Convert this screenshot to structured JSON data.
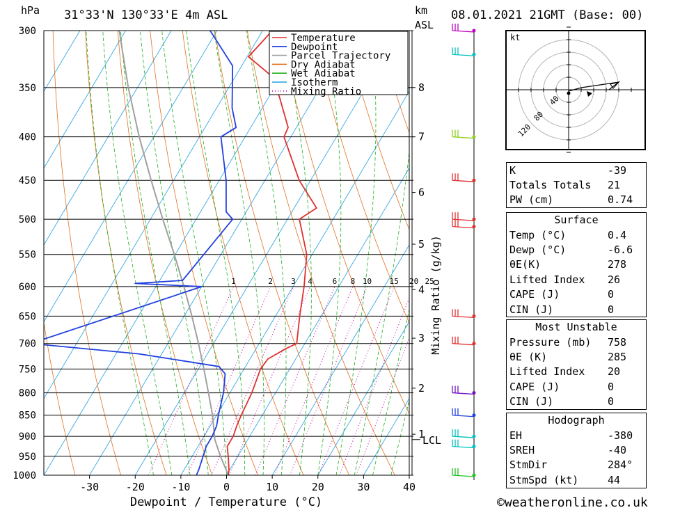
{
  "header": {
    "pressure_unit": "hPa",
    "location": "31°33'N  130°33'E  4m  ASL",
    "km_label": "km",
    "asl_label": "ASL",
    "datetime": "08.01.2021  21GMT  (Base: 00)"
  },
  "chart_data": {
    "type": "line",
    "title": "31°33'N  130°33'E  4m  ASL",
    "xlabel": "Dewpoint / Temperature (°C)",
    "ylabel": "hPa",
    "y2label": "Mixing Ratio (g/kg)",
    "xlim": [
      -40,
      40
    ],
    "ylim": [
      1000,
      300
    ],
    "x_ticks": [
      -30,
      -20,
      -10,
      0,
      10,
      20,
      30,
      40
    ],
    "pressure_ticks": [
      300,
      350,
      400,
      450,
      500,
      550,
      600,
      650,
      700,
      750,
      800,
      850,
      900,
      950,
      1000
    ],
    "km_ticks": [
      {
        "label": "8",
        "p": 350
      },
      {
        "label": "7",
        "p": 400
      },
      {
        "label": "6",
        "p": 465
      },
      {
        "label": "5",
        "p": 535
      },
      {
        "label": "4",
        "p": 605
      },
      {
        "label": "3",
        "p": 690
      },
      {
        "label": "2",
        "p": 790
      },
      {
        "label": "1",
        "p": 895
      }
    ],
    "lcl_label": "LCL",
    "lcl_pressure": 908,
    "mixing_ratio_labels": [
      "1",
      "2",
      "3",
      "4",
      "6",
      "8",
      "10",
      "15",
      "20",
      "25"
    ],
    "legend": [
      {
        "name": "Temperature",
        "color": "#e03030",
        "style": "solid"
      },
      {
        "name": "Dewpoint",
        "color": "#2040e0",
        "style": "solid"
      },
      {
        "name": "Parcel Trajectory",
        "color": "#a0a0a0",
        "style": "solid"
      },
      {
        "name": "Dry Adiabat",
        "color": "#e07020",
        "style": "solid"
      },
      {
        "name": "Wet Adiabat",
        "color": "#20b020",
        "style": "solid"
      },
      {
        "name": "Isotherm",
        "color": "#20a0e0",
        "style": "solid"
      },
      {
        "name": "Mixing Ratio",
        "color": "#c000a0",
        "style": "dotted"
      }
    ],
    "series": [
      {
        "name": "Temperature",
        "color": "#e03030",
        "p": [
          1000,
          985,
          950,
          925,
          900,
          875,
          850,
          800,
          750,
          730,
          710,
          700,
          650,
          600,
          550,
          500,
          485,
          450,
          400,
          390,
          360,
          340,
          322,
          300
        ],
        "t": [
          0.4,
          -0.2,
          -2.1,
          -3.6,
          -3.6,
          -4.2,
          -4.6,
          -5.2,
          -6.4,
          -6.1,
          -3.5,
          -1.8,
          -4.7,
          -7.6,
          -11.2,
          -17.4,
          -15.1,
          -22.5,
          -31.5,
          -31.8,
          -37.5,
          -41.8,
          -49.7,
          -47.9
        ]
      },
      {
        "name": "Dewpoint",
        "color": "#2040e0",
        "p": [
          1000,
          985,
          950,
          925,
          900,
          875,
          850,
          800,
          760,
          745,
          720,
          700,
          600,
          595,
          590,
          500,
          490,
          450,
          400,
          390,
          370,
          330,
          300
        ],
        "t": [
          -6.6,
          -6.8,
          -7.6,
          -8.2,
          -8.2,
          -8.6,
          -9.6,
          -11.4,
          -13.5,
          -15.8,
          -35.0,
          -60.0,
          -30.0,
          -45.0,
          -35.0,
          -32.0,
          -34.4,
          -38.5,
          -45.3,
          -43.2,
          -46.6,
          -52.0,
          -61.5
        ]
      },
      {
        "name": "Parcel Trajectory",
        "color": "#a0a0a0",
        "p": [
          1000,
          950,
          908,
          850,
          800,
          750,
          700,
          650,
          600,
          550,
          500,
          450,
          400,
          350,
          300
        ],
        "t": [
          0.4,
          -3.8,
          -7.2,
          -10.9,
          -14.7,
          -18.8,
          -23.3,
          -28.3,
          -33.9,
          -40.2,
          -47.3,
          -54.9,
          -63.2,
          -72.0,
          -81.4
        ]
      }
    ]
  },
  "hodograph": {
    "unit": "kt",
    "ring_labels": [
      "40",
      "80",
      "120"
    ]
  },
  "indices": {
    "rows": [
      {
        "label": "K",
        "value": "-39"
      },
      {
        "label": "Totals Totals",
        "value": "21"
      },
      {
        "label": "PW (cm)",
        "value": "0.74"
      }
    ]
  },
  "surface": {
    "title": "Surface",
    "rows": [
      {
        "label": "Temp (°C)",
        "value": "0.4"
      },
      {
        "label": "Dewp (°C)",
        "value": "-6.6"
      },
      {
        "label": "θE(K)",
        "value": "278"
      },
      {
        "label": "Lifted Index",
        "value": "26"
      },
      {
        "label": "CAPE (J)",
        "value": "0"
      },
      {
        "label": "CIN (J)",
        "value": "0"
      }
    ]
  },
  "most_unstable": {
    "title": "Most Unstable",
    "rows": [
      {
        "label": "Pressure (mb)",
        "value": "758"
      },
      {
        "label": "θE (K)",
        "value": "285"
      },
      {
        "label": "Lifted Index",
        "value": "20"
      },
      {
        "label": "CAPE (J)",
        "value": "0"
      },
      {
        "label": "CIN (J)",
        "value": "0"
      }
    ]
  },
  "hodo_table": {
    "title": "Hodograph",
    "rows": [
      {
        "label": "EH",
        "value": "-380"
      },
      {
        "label": "SREH",
        "value": "-40"
      },
      {
        "label": "StmDir",
        "value": "284°"
      },
      {
        "label": "StmSpd (kt)",
        "value": "44"
      }
    ]
  },
  "wind_profile": [
    {
      "p": 300,
      "color": "#c000c0"
    },
    {
      "p": 320,
      "color": "#00c0c0"
    },
    {
      "p": 400,
      "color": "#90d020"
    },
    {
      "p": 450,
      "color": "#e03030"
    },
    {
      "p": 500,
      "color": "#e03030"
    },
    {
      "p": 510,
      "color": "#e03030"
    },
    {
      "p": 650,
      "color": "#e03030"
    },
    {
      "p": 700,
      "color": "#e03030"
    },
    {
      "p": 800,
      "color": "#7010c0"
    },
    {
      "p": 850,
      "color": "#2040e0"
    },
    {
      "p": 900,
      "color": "#00c0c0"
    },
    {
      "p": 925,
      "color": "#00c0c0"
    },
    {
      "p": 1000,
      "color": "#20c020"
    }
  ],
  "footer": {
    "credit": "©weatheronline.co.uk"
  }
}
